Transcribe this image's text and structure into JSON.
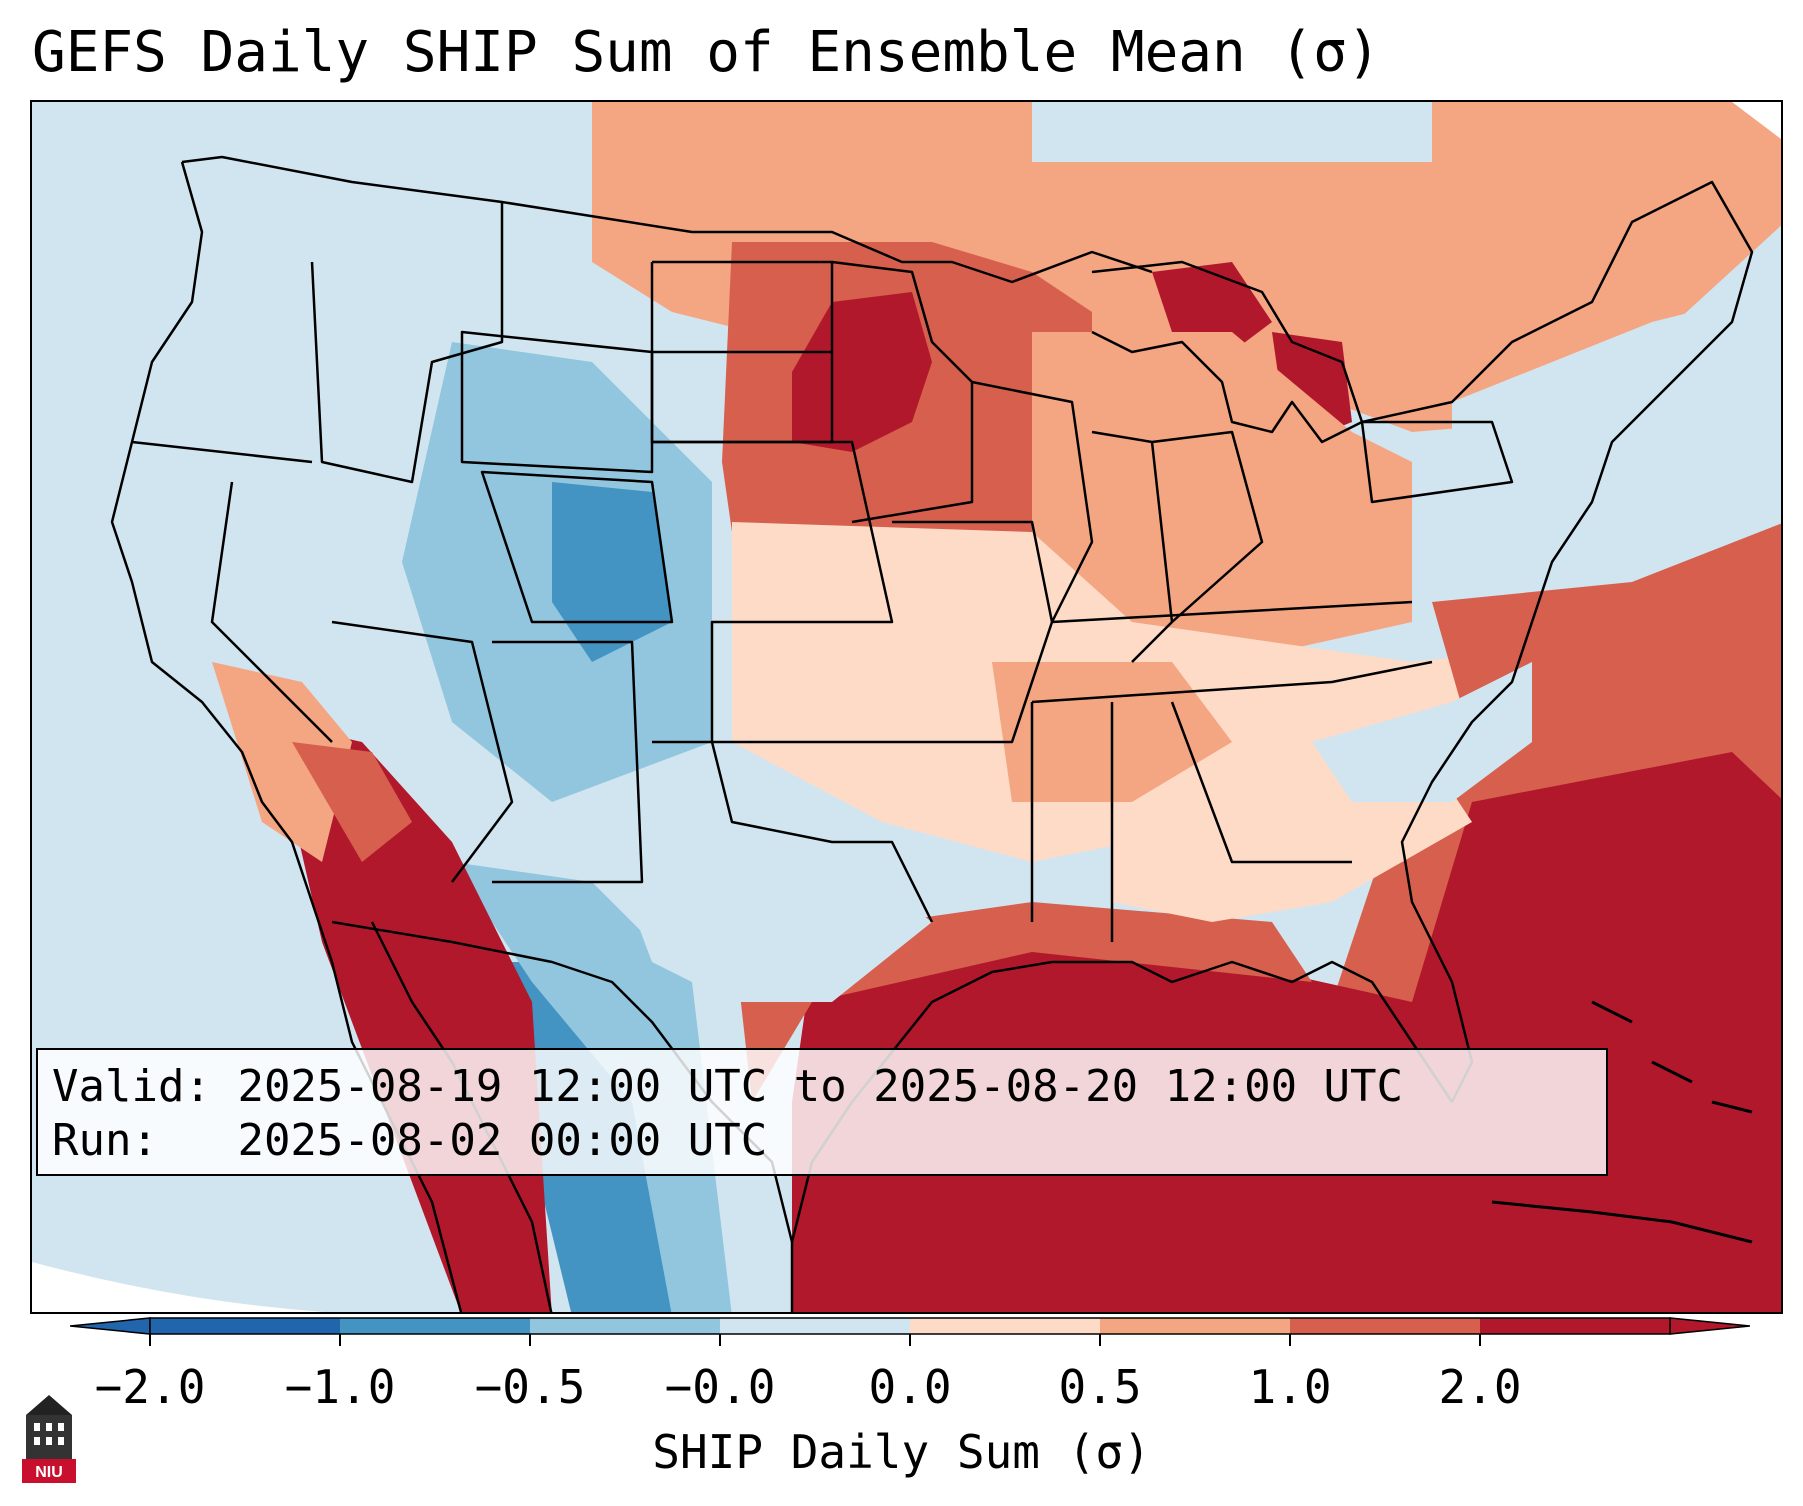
{
  "title": "GEFS Daily SHIP Sum of Ensemble Mean (σ)",
  "info_box": {
    "valid_label": "Valid:",
    "valid_value": "2025-08-19 12:00 UTC to 2025-08-20 12:00 UTC",
    "run_label": "Run:",
    "run_value": "2025-08-02 00:00 UTC"
  },
  "colorbar": {
    "label": "SHIP Daily Sum (σ)",
    "ticks": [
      "−2.0",
      "−1.0",
      "−0.5",
      "−0.0",
      "0.0",
      "0.5",
      "1.0",
      "2.0"
    ],
    "colors": [
      "#2166ac",
      "#4393c3",
      "#92c5de",
      "#d1e5f0",
      "#fddbc7",
      "#f4a582",
      "#d6604d",
      "#b2182b"
    ],
    "extend": "both"
  },
  "logo": {
    "text": "NIU",
    "icon": "university-building-icon"
  },
  "map": {
    "region": "Contiguous United States",
    "colors": {
      "ocean_light": "#d1e5f0",
      "neutral": "#fddbc7",
      "warm_mid": "#f4a582",
      "warm": "#d6604d",
      "hot": "#b2182b",
      "cool": "#92c5de",
      "cold": "#4393c3"
    }
  }
}
